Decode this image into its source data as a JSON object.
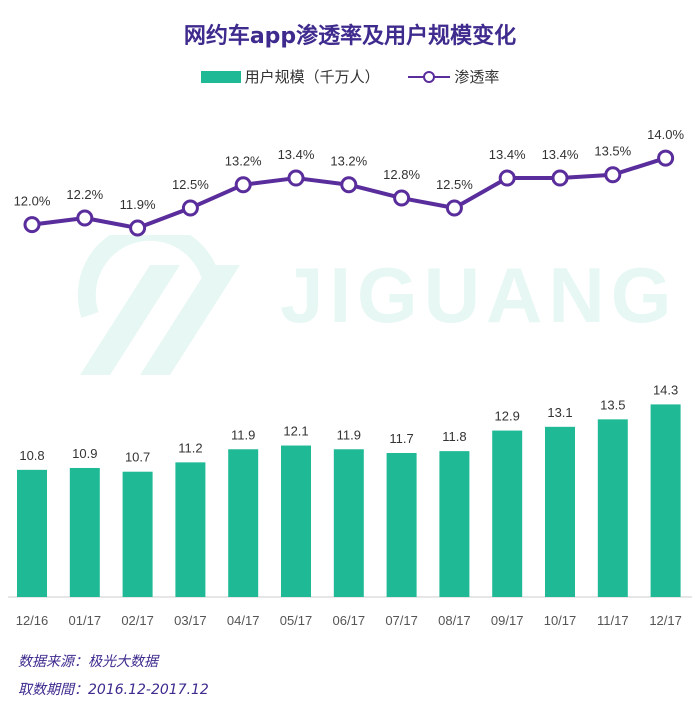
{
  "title": "网约车app渗透率及用户规模变化",
  "legend": {
    "bar_label": "用户规模（千万人）",
    "line_label": "渗透率"
  },
  "footer": {
    "source": "数据来源：极光大数据",
    "period": "取数期間：2016.12-2017.12"
  },
  "watermark": {
    "text": "JIGUANG"
  },
  "colors": {
    "bar": "#1fb996",
    "line": "#5a2d9c",
    "title": "#3f2a8e"
  },
  "chart_data": {
    "type": "bar",
    "title": "网约车app渗透率及用户规模变化",
    "categories": [
      "12/16",
      "01/17",
      "02/17",
      "03/17",
      "04/17",
      "05/17",
      "06/17",
      "07/17",
      "08/17",
      "09/17",
      "10/17",
      "11/17",
      "12/17"
    ],
    "series": [
      {
        "name": "用户规模（千万人）",
        "type": "bar",
        "values": [
          10.8,
          10.9,
          10.7,
          11.2,
          11.9,
          12.1,
          11.9,
          11.7,
          11.8,
          12.9,
          13.1,
          13.5,
          14.3
        ],
        "labels": [
          "10.8",
          "10.9",
          "10.7",
          "11.2",
          "11.9",
          "12.1",
          "11.9",
          "11.7",
          "11.8",
          "12.9",
          "13.1",
          "13.5",
          "14.3"
        ]
      },
      {
        "name": "渗透率",
        "type": "line",
        "values": [
          12.0,
          12.2,
          11.9,
          12.5,
          13.2,
          13.4,
          13.2,
          12.8,
          12.5,
          13.4,
          13.4,
          13.5,
          14.0
        ],
        "labels": [
          "12.0%",
          "12.2%",
          "11.9%",
          "12.5%",
          "13.2%",
          "13.4%",
          "13.2%",
          "12.8%",
          "12.5%",
          "13.4%",
          "13.4%",
          "13.5%",
          "14.0%"
        ]
      }
    ],
    "xlabel": "",
    "ylabel": "",
    "grid": false,
    "legend_position": "top"
  }
}
